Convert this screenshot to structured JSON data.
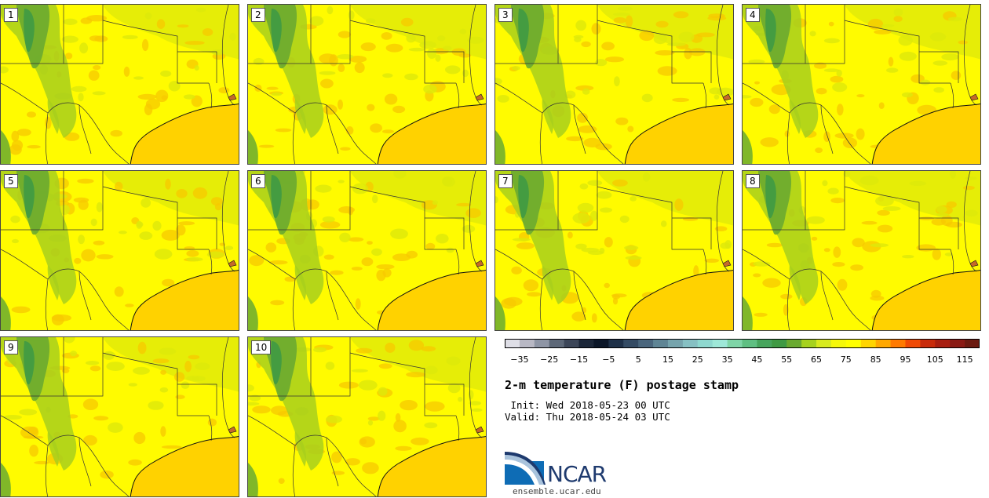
{
  "panels": [
    {
      "label": "1"
    },
    {
      "label": "2"
    },
    {
      "label": "3"
    },
    {
      "label": "4"
    },
    {
      "label": "5"
    },
    {
      "label": "6"
    },
    {
      "label": "7"
    },
    {
      "label": "8"
    },
    {
      "label": "9"
    },
    {
      "label": "10"
    }
  ],
  "colorbar": {
    "colors": [
      "#dedee6",
      "#b8b8c4",
      "#8e95a5",
      "#5d6878",
      "#3c4658",
      "#1b2638",
      "#0b1628",
      "#1e3048",
      "#344b64",
      "#4a667d",
      "#5f8595",
      "#76a4ad",
      "#86c0c3",
      "#8ed8cf",
      "#9ee8d8",
      "#7fd5a7",
      "#5fbf82",
      "#47a55d",
      "#3f9a44",
      "#6aaa30",
      "#a6d21e",
      "#d8ea1e",
      "#f5f80a",
      "#ffff00",
      "#ffd500",
      "#ffa800",
      "#ff7a00",
      "#f04a05",
      "#c82a0a",
      "#a81e10",
      "#8a1a14",
      "#6b1a10"
    ],
    "tick_labels": [
      "−35",
      "−25",
      "−15",
      "−5",
      "5",
      "15",
      "25",
      "35",
      "45",
      "55",
      "65",
      "75",
      "85",
      "95",
      "105",
      "115"
    ],
    "range": [
      -40,
      120
    ]
  },
  "title": "2-m temperature (F) postage stamp",
  "init_text": " Init: Wed 2018-05-23 00 UTC",
  "valid_text": "Valid: Thu 2018-05-24 03 UTC",
  "logo_text": "NCAR",
  "website": "ensemble.ucar.edu",
  "colors": {
    "land": "#fffb00",
    "gulf": "#ffd200",
    "warm": "#f7c800",
    "cool": "#dde80a",
    "green1": "#a8cf1c",
    "green2": "#6aaa30",
    "green3": "#3f9a44",
    "border": "#333333"
  }
}
